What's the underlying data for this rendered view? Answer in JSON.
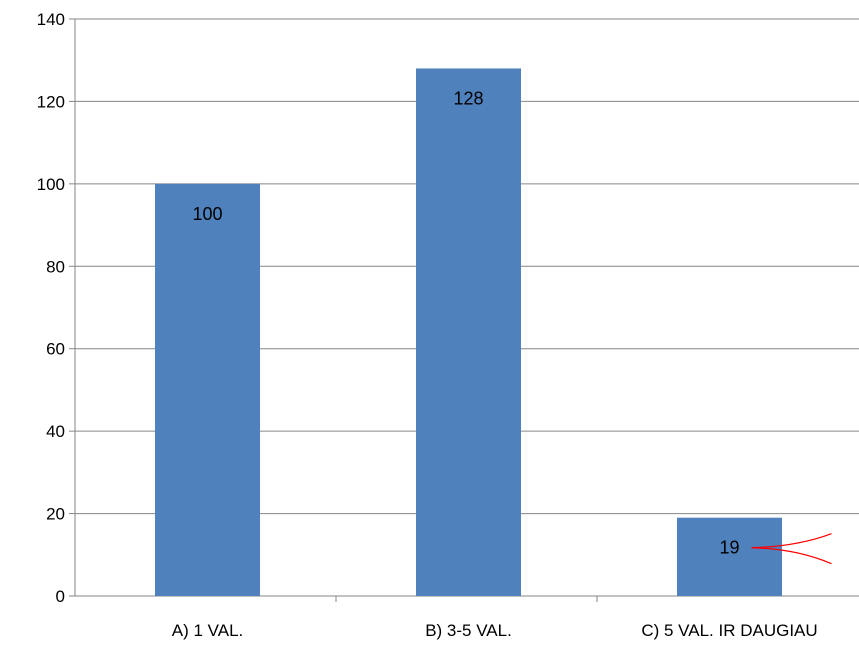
{
  "chart_data": {
    "type": "bar",
    "categories": [
      "A) 1 VAL.",
      "B) 3-5 VAL.",
      "C) 5 VAL. IR DAUGIAU"
    ],
    "values": [
      100,
      128,
      19
    ],
    "data_labels": [
      "100",
      "128",
      "19"
    ],
    "ylim": [
      0,
      140
    ],
    "yticks": [
      0,
      20,
      40,
      60,
      80,
      100,
      120,
      140
    ],
    "ytick_labels": [
      "0",
      "20",
      "40",
      "60",
      "80",
      "100",
      "120",
      "140"
    ],
    "grid": true,
    "legend": "none",
    "title": "",
    "xlabel": "",
    "ylabel": "",
    "colors": {
      "bar": "#4F81BD",
      "grid": "#868686",
      "axis": "#868686",
      "annotation": "#FF0000"
    }
  }
}
